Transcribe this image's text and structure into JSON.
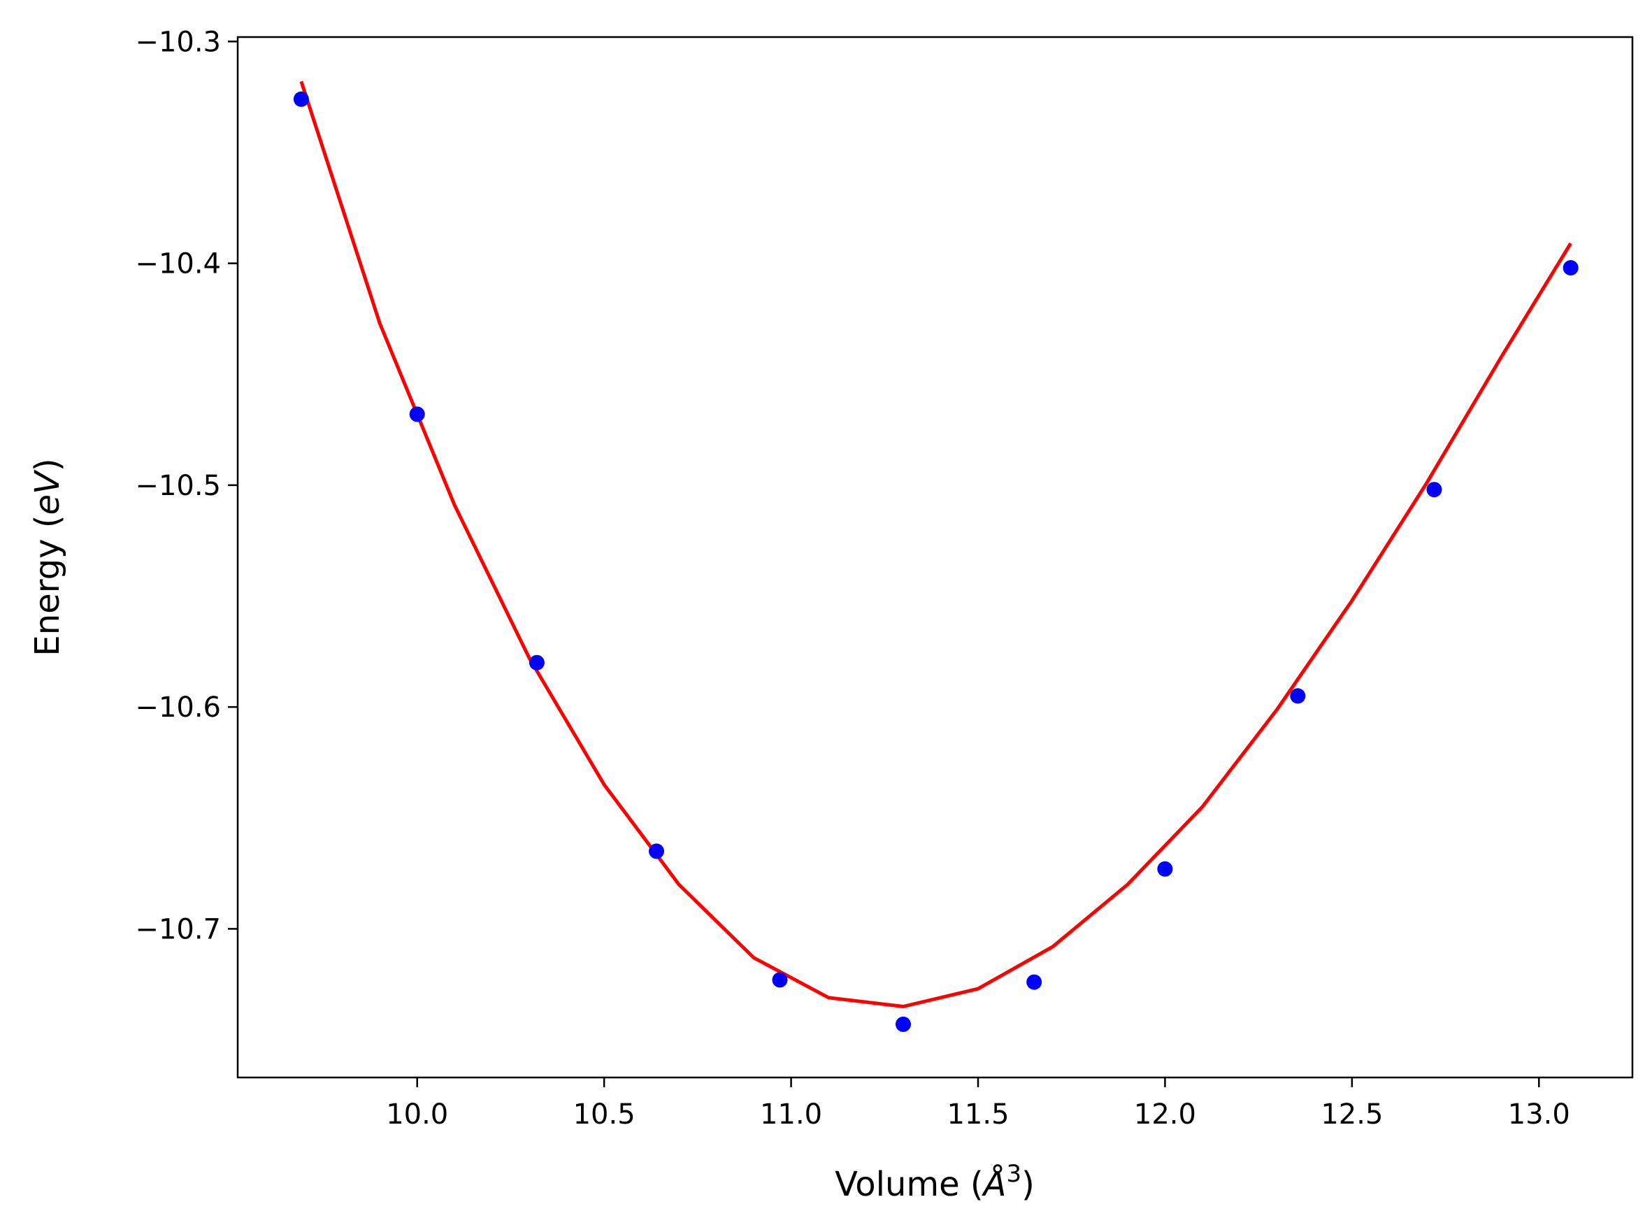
{
  "chart_data": {
    "type": "scatter",
    "xlabel": "Volume (Å³)",
    "ylabel": "Energy (eV)",
    "xlabel_parts": {
      "prefix": "Volume (",
      "math": "Å",
      "sup": "3",
      "suffix": ")"
    },
    "ylabel_parts": {
      "prefix": "Energy (",
      "math": "eV",
      "suffix": ")"
    },
    "xlim": [
      9.52,
      13.25
    ],
    "ylim": [
      -10.767,
      -10.298
    ],
    "grid": false,
    "legend": "none",
    "xticks": [
      {
        "value": 10.0,
        "label": "10.0"
      },
      {
        "value": 10.5,
        "label": "10.5"
      },
      {
        "value": 11.0,
        "label": "11.0"
      },
      {
        "value": 11.5,
        "label": "11.5"
      },
      {
        "value": 12.0,
        "label": "12.0"
      },
      {
        "value": 12.5,
        "label": "12.5"
      },
      {
        "value": 13.0,
        "label": "13.0"
      }
    ],
    "yticks": [
      {
        "value": -10.3,
        "label": "−10.3"
      },
      {
        "value": -10.4,
        "label": "−10.4"
      },
      {
        "value": -10.5,
        "label": "−10.5"
      },
      {
        "value": -10.6,
        "label": "−10.6"
      },
      {
        "value": -10.7,
        "label": "−10.7"
      }
    ],
    "series": [
      {
        "kind": "scatter",
        "color": "#0000ff",
        "x": [
          9.69,
          10.0,
          10.32,
          10.64,
          10.97,
          11.3,
          11.65,
          12.0,
          12.355,
          12.72,
          13.085
        ],
        "y": [
          -10.326,
          -10.468,
          -10.58,
          -10.665,
          -10.723,
          -10.743,
          -10.724,
          -10.673,
          -10.595,
          -10.502,
          -10.402
        ]
      },
      {
        "kind": "line",
        "color": "#ff0000",
        "x": [
          9.69,
          9.9,
          10.1,
          10.3,
          10.5,
          10.7,
          10.9,
          11.1,
          11.3,
          11.5,
          11.7,
          11.9,
          12.1,
          12.3,
          12.5,
          12.7,
          12.9,
          13.085
        ],
        "y": [
          -10.318,
          -10.427,
          -10.509,
          -10.578,
          -10.635,
          -10.68,
          -10.713,
          -10.731,
          -10.735,
          -10.727,
          -10.708,
          -10.68,
          -10.645,
          -10.601,
          -10.552,
          -10.499,
          -10.442,
          -10.391
        ]
      }
    ]
  }
}
